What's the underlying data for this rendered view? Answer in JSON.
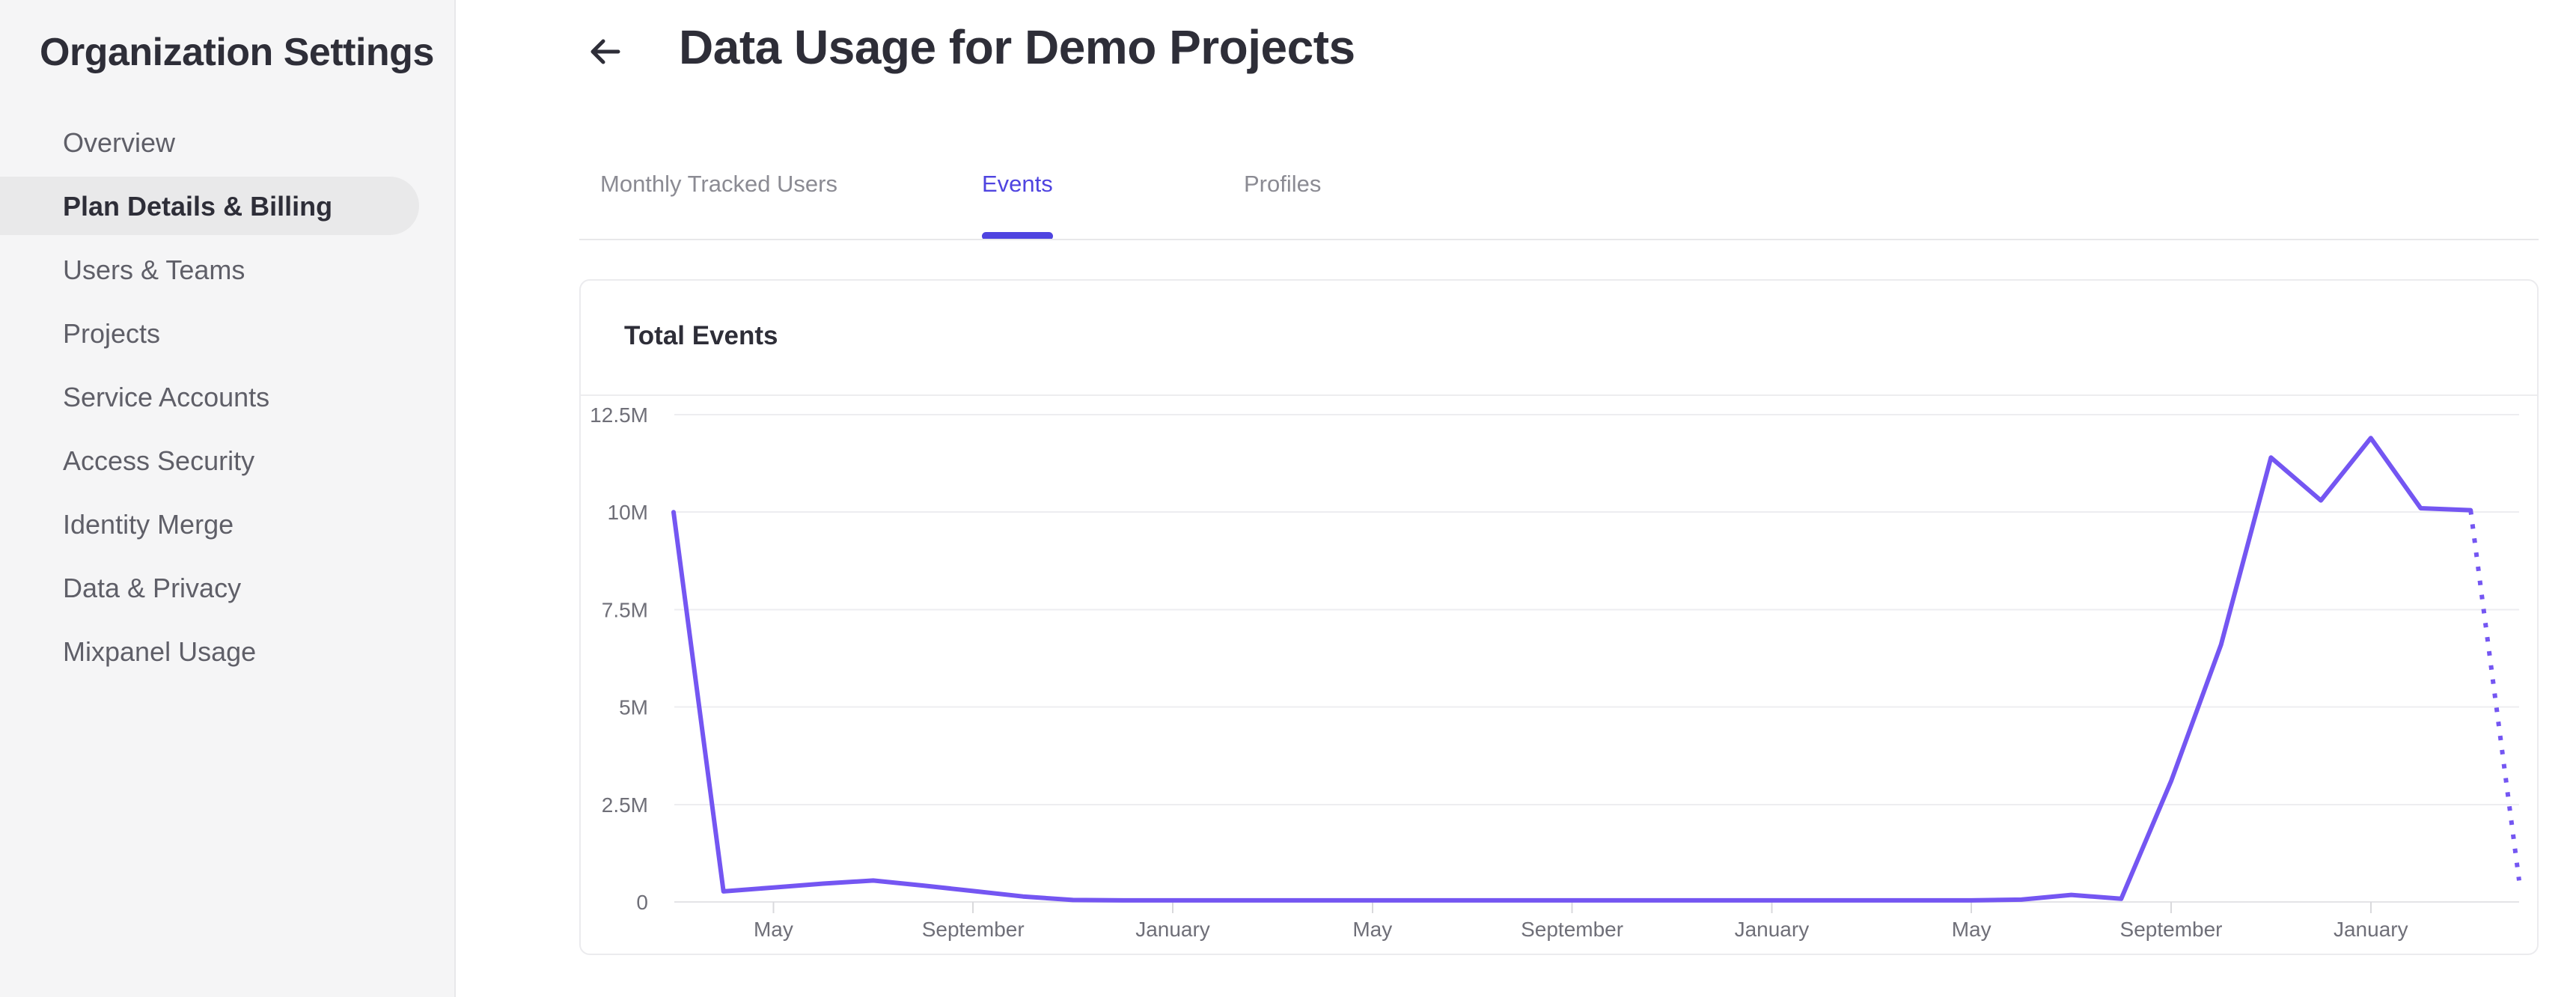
{
  "sidebar": {
    "title": "Organization Settings",
    "items": [
      {
        "label": "Overview",
        "selected": false
      },
      {
        "label": "Plan Details & Billing",
        "selected": true
      },
      {
        "label": "Users & Teams",
        "selected": false
      },
      {
        "label": "Projects",
        "selected": false
      },
      {
        "label": "Service Accounts",
        "selected": false
      },
      {
        "label": "Access Security",
        "selected": false
      },
      {
        "label": "Identity Merge",
        "selected": false
      },
      {
        "label": "Data & Privacy",
        "selected": false
      },
      {
        "label": "Mixpanel Usage",
        "selected": false
      }
    ]
  },
  "header": {
    "title": "Data Usage for Demo Projects",
    "back_icon": "left-arrow"
  },
  "tabs": [
    {
      "label": "Monthly Tracked Users",
      "active": false
    },
    {
      "label": "Events",
      "active": true
    },
    {
      "label": "Profiles",
      "active": false
    }
  ],
  "colors": {
    "accent": "#4f44e0",
    "line": "#7456f2",
    "gridline": "#ededf0",
    "axis_line": "#e4e4e7",
    "tick": "#d9d9dc",
    "sidebar_bg": "#f5f5f6",
    "selected_pill": "#e9e9ea",
    "text_dark": "#2e2e38",
    "text_gray": "#6f6f78"
  },
  "chart_data": {
    "type": "line",
    "title": "Total Events",
    "ylabel": "",
    "xlabel": "",
    "grid": "horizontal",
    "legend_position": "none",
    "ylim_millions": [
      0,
      13
    ],
    "y_tick_labels": [
      "12.5M",
      "10M",
      "7.5M",
      "5M",
      "2.5M",
      "0"
    ],
    "y_tick_values_millions": [
      12.5,
      10,
      7.5,
      5,
      2.5,
      0
    ],
    "x_tick_labels": [
      "May",
      "September",
      "January",
      "May",
      "September",
      "January",
      "May",
      "September",
      "January"
    ],
    "x_tick_month_indices": [
      2,
      6,
      10,
      14,
      18,
      22,
      26,
      30,
      34
    ],
    "series": [
      {
        "name": "Total Events",
        "values_millions": [
          10,
          0.27,
          0.37,
          0.47,
          0.55,
          0.42,
          0.28,
          0.14,
          0.05,
          0.04,
          0.04,
          0.04,
          0.04,
          0.04,
          0.04,
          0.04,
          0.04,
          0.04,
          0.04,
          0.04,
          0.04,
          0.04,
          0.04,
          0.04,
          0.04,
          0.04,
          0.04,
          0.06,
          0.18,
          0.08,
          3.1,
          6.6,
          11.4,
          10.3,
          11.9,
          10.1,
          10.05,
          0.55
        ],
        "dashed_from_index": 36
      }
    ]
  }
}
